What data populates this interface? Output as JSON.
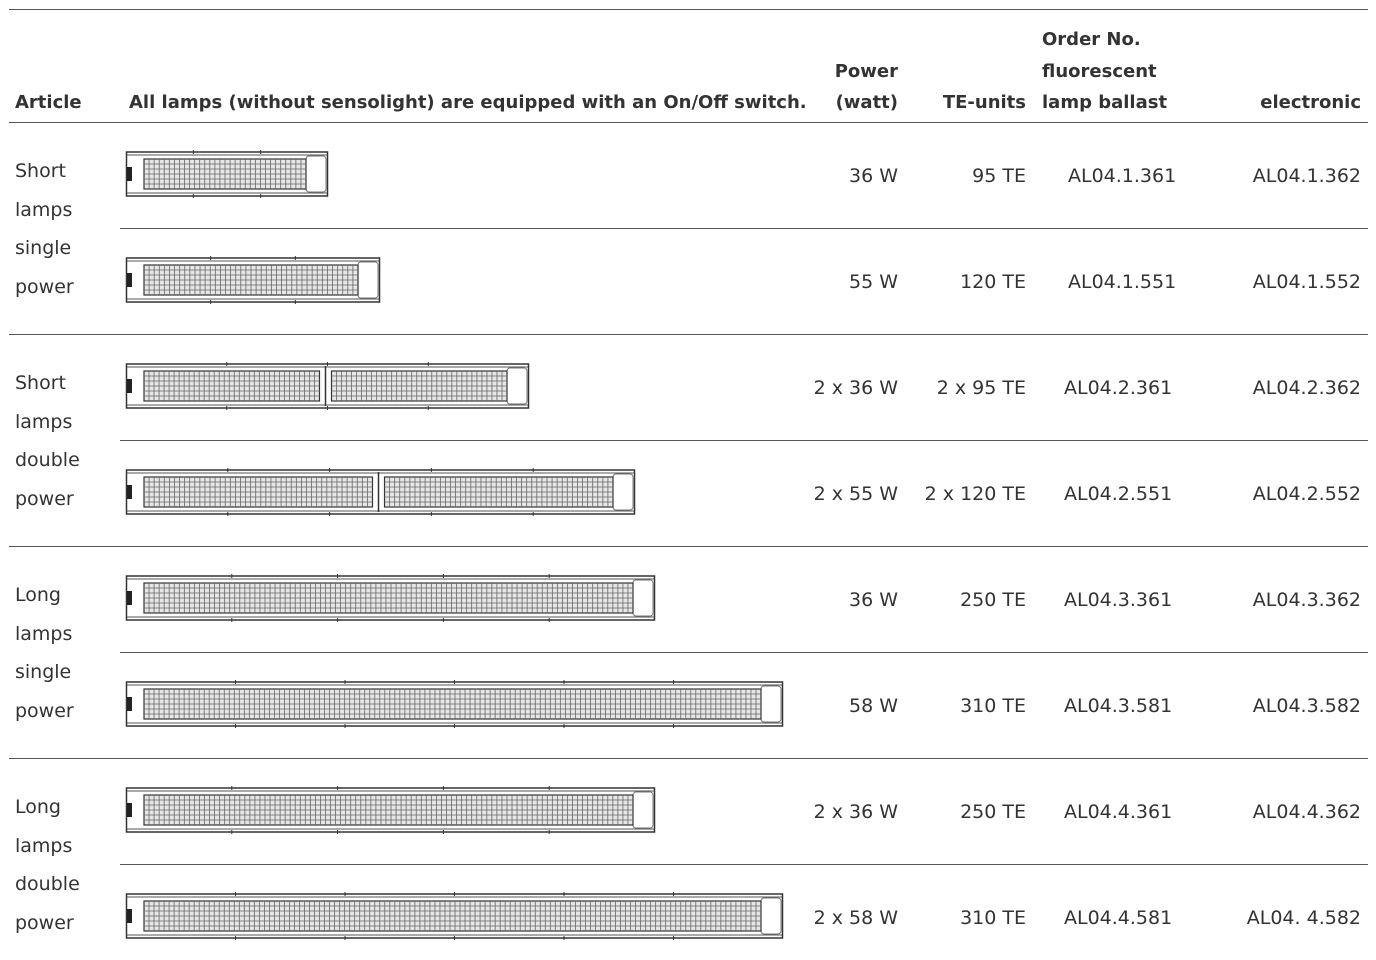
{
  "header": {
    "article": "Article",
    "description": "All lamps (without sensolight) are equipped with an On/Off switch.",
    "power_line1": "Power",
    "power_line2": "(watt)",
    "te_units": "TE-units",
    "order_line1": "Order No.",
    "order_line2": "fluorescent",
    "order_line3": "lamp ballast",
    "electronic": "electronic"
  },
  "groups": [
    {
      "article": [
        "Short",
        "lamps",
        "single",
        "power"
      ],
      "rows": [
        {
          "power": "36 W",
          "te": "95 TE",
          "order": "AL04.1.361",
          "electronic": "AL04.1.362"
        },
        {
          "power": "55 W",
          "te": "120 TE",
          "order": "AL04.1.551",
          "electronic": "AL04.1.552"
        }
      ]
    },
    {
      "article": [
        "Short",
        "lamps",
        "double",
        "power"
      ],
      "rows": [
        {
          "power": "2 x 36 W",
          "te": "2 x 95 TE",
          "order": "AL04.2.361",
          "electronic": "AL04.2.362"
        },
        {
          "power": "2 x 55 W",
          "te": "2 x 120 TE",
          "order": "AL04.2.551",
          "electronic": "AL04.2.552"
        }
      ]
    },
    {
      "article": [
        "Long",
        "lamps",
        "single",
        "power"
      ],
      "rows": [
        {
          "power": "36 W",
          "te": "250 TE",
          "order": "AL04.3.361",
          "electronic": "AL04.3.362"
        },
        {
          "power": "58 W",
          "te": "310 TE",
          "order": "AL04.3.581",
          "electronic": "AL04.3.582"
        }
      ]
    },
    {
      "article": [
        "Long",
        "lamps",
        "double",
        "power"
      ],
      "rows": [
        {
          "power": "2 x 36 W",
          "te": "250 TE",
          "order": "AL04.4.361",
          "electronic": "AL04.4.362"
        },
        {
          "power": "2 x 58 W",
          "te": "310 TE",
          "order": "AL04.4.581",
          "electronic": "AL04. 4.582"
        }
      ]
    }
  ]
}
